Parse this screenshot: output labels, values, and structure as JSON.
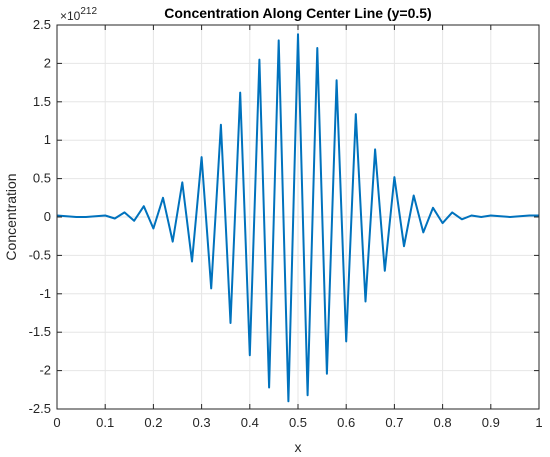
{
  "chart_data": {
    "type": "line",
    "title": "Concentration Along Center Line (y=0.5)",
    "xlabel": "x",
    "ylabel": "Concentration",
    "y_multiplier_base": "×10",
    "y_multiplier_exponent": "212",
    "xlim": [
      0,
      1
    ],
    "ylim": [
      -2.5,
      2.5
    ],
    "grid": true,
    "line_color": "#0072BD",
    "x_ticks": [
      "0",
      "0.1",
      "0.2",
      "0.3",
      "0.4",
      "0.5",
      "0.6",
      "0.7",
      "0.8",
      "0.9",
      "1"
    ],
    "x_tick_values": [
      0,
      0.1,
      0.2,
      0.3,
      0.4,
      0.5,
      0.6,
      0.7,
      0.8,
      0.9,
      1
    ],
    "y_ticks": [
      "-2.5",
      "-2",
      "-1.5",
      "-1",
      "-0.5",
      "0",
      "0.5",
      "1",
      "1.5",
      "2",
      "2.5"
    ],
    "y_tick_values": [
      -2.5,
      -2,
      -1.5,
      -1,
      -0.5,
      0,
      0.5,
      1,
      1.5,
      2,
      2.5
    ],
    "series": [
      {
        "x": [
          0,
          0.02,
          0.04,
          0.06,
          0.08,
          0.1,
          0.12,
          0.14,
          0.16,
          0.18,
          0.2,
          0.22,
          0.24,
          0.26,
          0.28,
          0.3,
          0.32,
          0.34,
          0.36,
          0.38,
          0.4,
          0.42,
          0.44,
          0.46,
          0.48,
          0.5,
          0.52,
          0.54,
          0.56,
          0.58,
          0.6,
          0.62,
          0.64,
          0.66,
          0.68,
          0.7,
          0.72,
          0.74,
          0.76,
          0.78,
          0.8,
          0.82,
          0.84,
          0.86,
          0.88,
          0.9,
          0.92,
          0.94,
          0.96,
          0.98,
          1
        ],
        "y": [
          0.02,
          0.01,
          0,
          0,
          0.01,
          0.02,
          -0.02,
          0.06,
          -0.05,
          0.14,
          -0.15,
          0.25,
          -0.32,
          0.45,
          -0.58,
          0.78,
          -0.93,
          1.2,
          -1.38,
          1.62,
          -1.8,
          2.05,
          -2.22,
          2.3,
          -2.4,
          2.38,
          -2.32,
          2.2,
          -2.04,
          1.78,
          -1.62,
          1.34,
          -1.1,
          0.88,
          -0.7,
          0.52,
          -0.38,
          0.28,
          -0.2,
          0.12,
          -0.08,
          0.06,
          -0.03,
          0.02,
          0,
          0.02,
          0.01,
          0,
          0.01,
          0.02,
          0.02
        ]
      }
    ]
  }
}
